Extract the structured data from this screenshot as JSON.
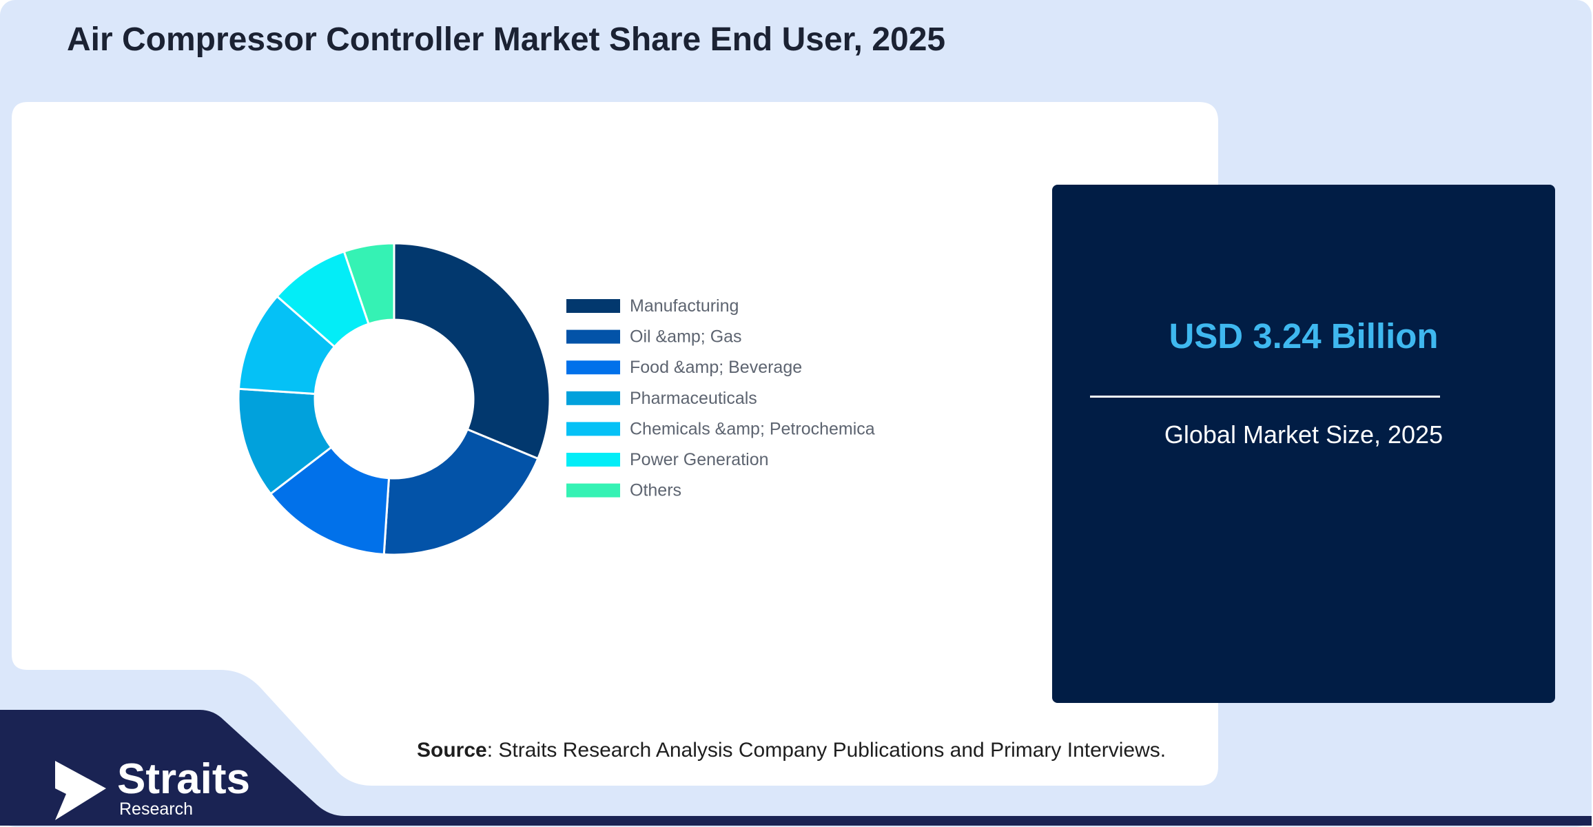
{
  "title": "Air Compressor Controller Market Share End User, 2025",
  "chart_data": {
    "type": "pie",
    "style": "donut",
    "legend_position": "right",
    "categories": [
      "Manufacturing",
      "Oil &amp; Gas",
      "Food &amp; Beverage",
      "Pharmaceuticals",
      "Chemicals &amp; Petrochemica",
      "Power Generation",
      "Others"
    ],
    "values": [
      30,
      19,
      13,
      11,
      10,
      8,
      5
    ],
    "colors": [
      "#02386e",
      "#0353a8",
      "#0171ea",
      "#01a1dc",
      "#05c1f6",
      "#03edf7",
      "#35f2b4"
    ]
  },
  "market": {
    "value": "USD 3.24 Billion",
    "label": "Global Market Size, 2025"
  },
  "source": {
    "label": "Source",
    "text": ": Straits Research Analysis Company Publications and Primary Interviews."
  },
  "logo": {
    "name": "Straits",
    "sub": "Research"
  }
}
